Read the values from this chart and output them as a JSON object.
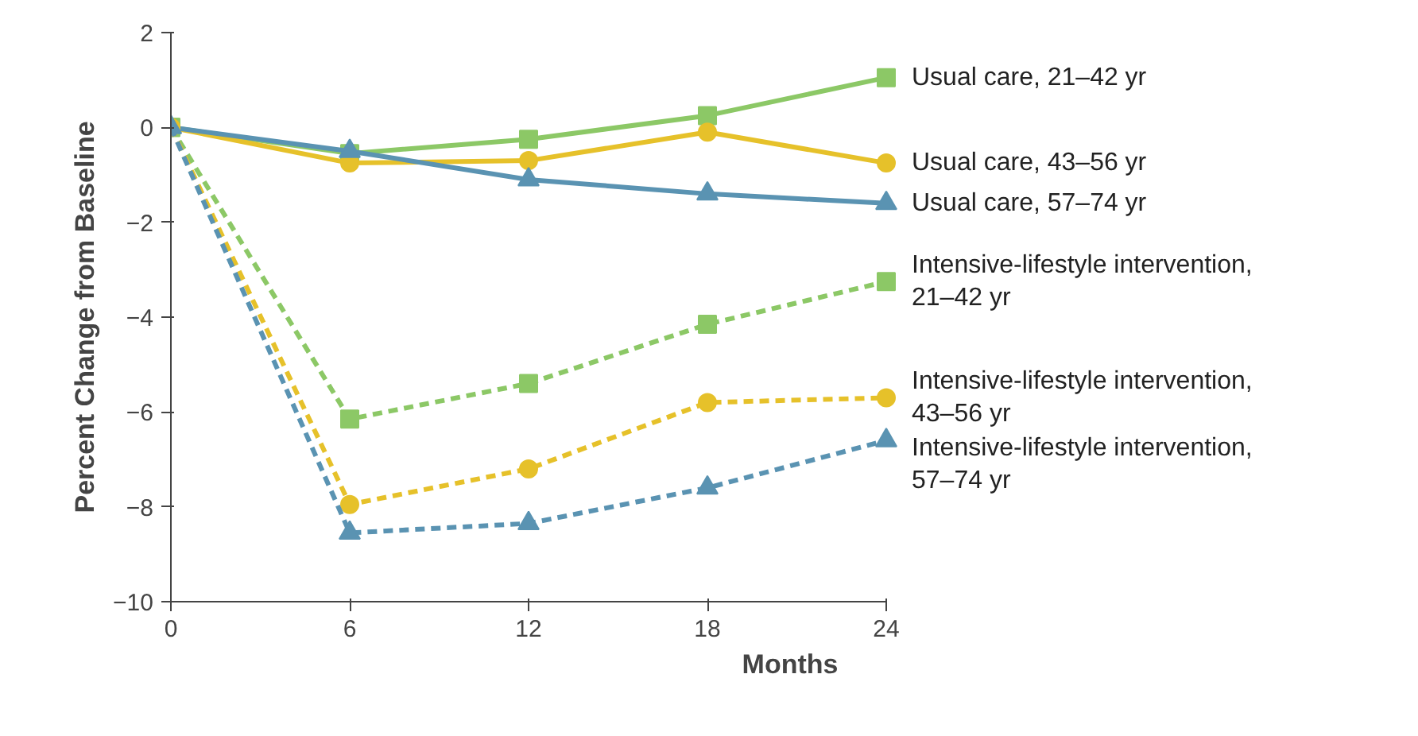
{
  "chart_data": {
    "type": "line",
    "xlabel": "Months",
    "ylabel": "Percent Change from Baseline",
    "x": [
      0,
      6,
      12,
      18,
      24
    ],
    "xlim": [
      0,
      24
    ],
    "xticks": [
      0,
      6,
      12,
      18,
      24
    ],
    "ylim": [
      -10,
      2
    ],
    "yticks": [
      -10,
      -8,
      -6,
      -4,
      -2,
      0,
      2
    ],
    "grid": false,
    "series": [
      {
        "name": "Usual care, 21–42 yr",
        "color": "#8cc866",
        "marker": "square",
        "line_style": "solid",
        "values": [
          0,
          -0.55,
          -0.25,
          0.25,
          1.05
        ]
      },
      {
        "name": "Usual care, 43–56 yr",
        "color": "#e6c12a",
        "marker": "circle",
        "line_style": "solid",
        "values": [
          0,
          -0.75,
          -0.7,
          -0.1,
          -0.75
        ]
      },
      {
        "name": "Usual care, 57–74 yr",
        "color": "#5a93b2",
        "marker": "triangle",
        "line_style": "solid",
        "values": [
          0,
          -0.5,
          -1.1,
          -1.4,
          -1.6
        ]
      },
      {
        "name": "Intensive-lifestyle intervention, 21–42 yr",
        "color": "#8cc866",
        "marker": "square",
        "line_style": "dashed",
        "values": [
          0,
          -6.15,
          -5.4,
          -4.15,
          -3.25
        ]
      },
      {
        "name": "Intensive-lifestyle intervention, 43–56 yr",
        "color": "#e6c12a",
        "marker": "circle",
        "line_style": "dashed",
        "values": [
          0,
          -7.95,
          -7.2,
          -5.8,
          -5.7
        ]
      },
      {
        "name": "Intensive-lifestyle intervention, 57–74 yr",
        "color": "#5a93b2",
        "marker": "triangle",
        "line_style": "dashed",
        "values": [
          0,
          -8.55,
          -8.35,
          -7.6,
          -6.6
        ]
      }
    ]
  }
}
